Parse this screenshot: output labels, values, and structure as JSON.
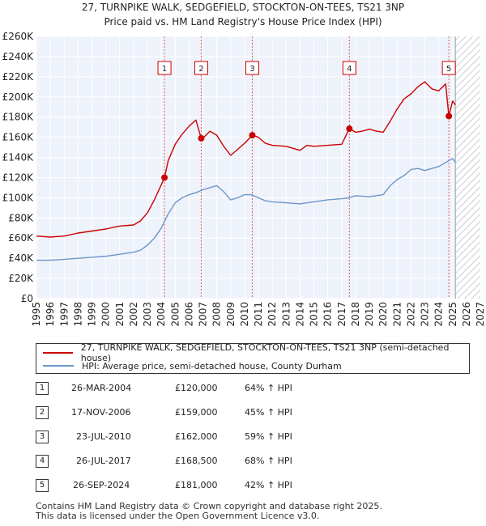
{
  "chart_data": {
    "type": "line",
    "title": "27, TURNPIKE WALK, SEDGEFIELD, STOCKTON-ON-TEES, TS21 3NP",
    "subtitle": "Price paid vs. HM Land Registry's House Price Index (HPI)",
    "xlabel": "",
    "ylabel": "",
    "xlim": [
      1995,
      2027
    ],
    "ylim": [
      0,
      260000
    ],
    "x_ticks": [
      "1995",
      "1996",
      "1997",
      "1998",
      "1999",
      "2000",
      "2001",
      "2002",
      "2003",
      "2004",
      "2005",
      "2006",
      "2007",
      "2008",
      "2009",
      "2010",
      "2011",
      "2012",
      "2013",
      "2014",
      "2015",
      "2016",
      "2017",
      "2018",
      "2019",
      "2020",
      "2021",
      "2022",
      "2023",
      "2024",
      "2025",
      "2026",
      "2027"
    ],
    "y_ticks": [
      "£0",
      "£20K",
      "£40K",
      "£60K",
      "£80K",
      "£100K",
      "£120K",
      "£140K",
      "£160K",
      "£180K",
      "£200K",
      "£220K",
      "£240K",
      "£260K"
    ],
    "forecast_start": 2025.2,
    "series": [
      {
        "name": "27, TURNPIKE WALK, SEDGEFIELD, STOCKTON-ON-TEES, TS21 3NP (semi-detached house)",
        "color": "#cc0000",
        "x": [
          1995,
          1996,
          1997,
          1998,
          1999,
          2000,
          2001,
          2002,
          2002.5,
          2003,
          2003.5,
          2004.23,
          2004.5,
          2005,
          2005.5,
          2006,
          2006.5,
          2006.88,
          2007,
          2007.5,
          2008,
          2008.5,
          2009,
          2009.5,
          2010,
          2010.56,
          2011,
          2011.5,
          2012,
          2013,
          2014,
          2014.5,
          2015,
          2016,
          2017,
          2017.56,
          2018,
          2018.5,
          2019,
          2019.5,
          2020,
          2020.5,
          2021,
          2021.5,
          2022,
          2022.5,
          2023,
          2023.5,
          2024,
          2024.5,
          2024.73,
          2025,
          2025.2
        ],
        "values": [
          62000,
          61000,
          62000,
          65000,
          67000,
          69000,
          72000,
          73000,
          77000,
          85000,
          98000,
          120000,
          137000,
          153000,
          163000,
          171000,
          177000,
          159000,
          159000,
          166000,
          162000,
          151000,
          142000,
          148000,
          154000,
          162000,
          160000,
          154000,
          152000,
          151000,
          147000,
          152000,
          151000,
          152000,
          153000,
          168500,
          165000,
          166000,
          168000,
          166000,
          165000,
          176000,
          188000,
          198000,
          203000,
          210000,
          215000,
          208000,
          206000,
          213000,
          181000,
          196000,
          192000
        ]
      },
      {
        "name": "HPI: Average price, semi-detached house, County Durham",
        "color": "#6b96c8",
        "x": [
          1995,
          1996,
          1997,
          1998,
          1999,
          2000,
          2001,
          2002,
          2002.5,
          2003,
          2003.5,
          2004,
          2004.5,
          2005,
          2005.5,
          2006,
          2006.5,
          2007,
          2007.5,
          2008,
          2008.5,
          2009,
          2009.5,
          2010,
          2010.5,
          2011,
          2011.5,
          2012,
          2013,
          2014,
          2015,
          2016,
          2017,
          2017.5,
          2018,
          2019,
          2020,
          2020.5,
          2021,
          2021.5,
          2022,
          2022.5,
          2023,
          2023.5,
          2024,
          2024.5,
          2025,
          2025.2
        ],
        "values": [
          38000,
          38000,
          39000,
          40000,
          41000,
          42000,
          44000,
          46000,
          48000,
          53000,
          60000,
          70000,
          84000,
          95000,
          100000,
          103000,
          105000,
          108000,
          110000,
          112000,
          106000,
          98000,
          100000,
          103000,
          103000,
          100000,
          97000,
          96000,
          95000,
          94000,
          96000,
          98000,
          99000,
          100000,
          102000,
          101000,
          103000,
          112000,
          118000,
          122000,
          128000,
          129000,
          127000,
          129000,
          131000,
          135000,
          139000,
          135000
        ]
      }
    ],
    "sales": [
      {
        "num": "1",
        "x": 2004.23,
        "value": 120000
      },
      {
        "num": "2",
        "x": 2006.88,
        "value": 159000
      },
      {
        "num": "3",
        "x": 2010.56,
        "value": 162000
      },
      {
        "num": "4",
        "x": 2017.56,
        "value": 168500
      },
      {
        "num": "5",
        "x": 2024.73,
        "value": 181000
      }
    ]
  },
  "legend": {
    "property_label": "27, TURNPIKE WALK, SEDGEFIELD, STOCKTON-ON-TEES, TS21 3NP (semi-detached house)",
    "hpi_label": "HPI: Average price, semi-detached house, County Durham"
  },
  "table": [
    {
      "num": "1",
      "date": "26-MAR-2004",
      "price": "£120,000",
      "hpi": "64% ↑ HPI"
    },
    {
      "num": "2",
      "date": "17-NOV-2006",
      "price": "£159,000",
      "hpi": "45% ↑ HPI"
    },
    {
      "num": "3",
      "date": "23-JUL-2010",
      "price": "£162,000",
      "hpi": "59% ↑ HPI"
    },
    {
      "num": "4",
      "date": "26-JUL-2017",
      "price": "£168,500",
      "hpi": "68% ↑ HPI"
    },
    {
      "num": "5",
      "date": "26-SEP-2024",
      "price": "£181,000",
      "hpi": "42% ↑ HPI"
    }
  ],
  "footer": {
    "line1": "Contains HM Land Registry data © Crown copyright and database right 2025.",
    "line2": "This data is licensed under the Open Government Licence v3.0."
  }
}
